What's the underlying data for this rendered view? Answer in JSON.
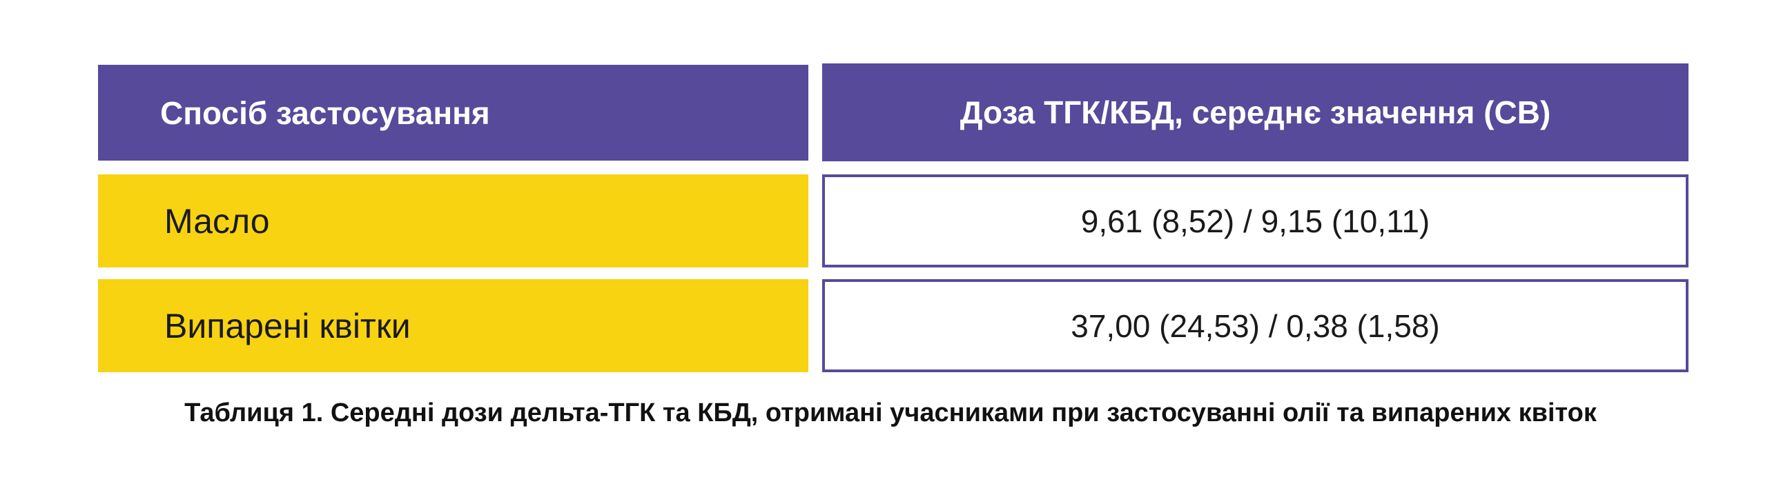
{
  "table": {
    "headers": [
      "Спосіб застосування",
      "Доза ТГК/КБД, середнє значення (СВ)"
    ],
    "rows": [
      {
        "method": "Масло",
        "dose": "9,61 (8,52) / 9,15 (10,11)"
      },
      {
        "method": "Випарені квітки",
        "dose": "37,00 (24,53) / 0,38 (1,58)"
      }
    ],
    "caption": "Таблиця 1. Середні дози дельта-ТГК та КБД, отримані учасниками при застосуванні олії та випарених квіток"
  },
  "colors": {
    "header_bg": "#574a9a",
    "label_bg": "#f7d312",
    "border": "#574a9a"
  }
}
